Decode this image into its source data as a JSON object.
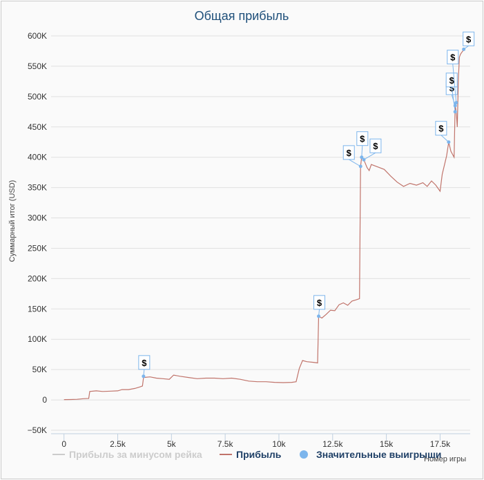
{
  "chart_data": {
    "type": "line",
    "title": "Общая прибыль",
    "xlabel": "Номер игры",
    "ylabel": "Суммарный итог (USD)",
    "xlim": [
      -600,
      18900
    ],
    "ylim": [
      -50000,
      600000
    ],
    "x_ticks": [
      0,
      2500,
      5000,
      7500,
      10000,
      12500,
      15000,
      17500
    ],
    "x_tick_labels": [
      "0",
      "2.5k",
      "5k",
      "7.5k",
      "10k",
      "12.5k",
      "15k",
      "17.5k"
    ],
    "y_ticks": [
      -50000,
      0,
      50000,
      100000,
      150000,
      200000,
      250000,
      300000,
      350000,
      400000,
      450000,
      500000,
      550000,
      600000
    ],
    "y_tick_labels": [
      "−50K",
      "0",
      "50K",
      "100K",
      "150K",
      "200K",
      "250K",
      "300K",
      "350K",
      "400K",
      "450K",
      "500K",
      "550K",
      "600K"
    ],
    "grid": true,
    "legend_position": "bottom",
    "legend": [
      {
        "label": "Прибыль за минусом рейка",
        "color": "#cccccc",
        "marker": "line",
        "active": false
      },
      {
        "label": "Прибыль",
        "color": "#c0736a",
        "marker": "line",
        "active": true
      },
      {
        "label": "Значительные выигрыши",
        "color": "#7cb5ec",
        "marker": "circle",
        "active": true
      }
    ],
    "series": [
      {
        "name": "Прибыль",
        "color": "#c0736a",
        "points": [
          [
            0,
            500
          ],
          [
            300,
            700
          ],
          [
            600,
            1000
          ],
          [
            900,
            2000
          ],
          [
            1150,
            2500
          ],
          [
            1200,
            14000
          ],
          [
            1500,
            15000
          ],
          [
            1800,
            14000
          ],
          [
            2200,
            14500
          ],
          [
            2500,
            15000
          ],
          [
            2700,
            17000
          ],
          [
            3000,
            17000
          ],
          [
            3300,
            19000
          ],
          [
            3500,
            21000
          ],
          [
            3650,
            23000
          ],
          [
            3700,
            37000
          ],
          [
            4000,
            38000
          ],
          [
            4300,
            36000
          ],
          [
            4600,
            35000
          ],
          [
            4900,
            34000
          ],
          [
            5100,
            41000
          ],
          [
            5400,
            39000
          ],
          [
            5800,
            37000
          ],
          [
            6200,
            35000
          ],
          [
            6600,
            36000
          ],
          [
            7000,
            36000
          ],
          [
            7400,
            35000
          ],
          [
            7800,
            36000
          ],
          [
            8200,
            34000
          ],
          [
            8600,
            31000
          ],
          [
            9000,
            30000
          ],
          [
            9400,
            30000
          ],
          [
            9800,
            29000
          ],
          [
            10200,
            28500
          ],
          [
            10600,
            29000
          ],
          [
            10800,
            30000
          ],
          [
            10950,
            52000
          ],
          [
            11100,
            65000
          ],
          [
            11300,
            63000
          ],
          [
            11600,
            62000
          ],
          [
            11800,
            61000
          ],
          [
            11850,
            138000
          ],
          [
            12000,
            135000
          ],
          [
            12200,
            141000
          ],
          [
            12400,
            148000
          ],
          [
            12600,
            147000
          ],
          [
            12800,
            157000
          ],
          [
            13000,
            160000
          ],
          [
            13200,
            156000
          ],
          [
            13400,
            163000
          ],
          [
            13600,
            165000
          ],
          [
            13750,
            167000
          ],
          [
            13800,
            385000
          ],
          [
            13850,
            400000
          ],
          [
            13950,
            396000
          ],
          [
            14100,
            383000
          ],
          [
            14200,
            378000
          ],
          [
            14300,
            388000
          ],
          [
            14600,
            384000
          ],
          [
            14900,
            380000
          ],
          [
            15200,
            369000
          ],
          [
            15500,
            359000
          ],
          [
            15800,
            352000
          ],
          [
            16100,
            357000
          ],
          [
            16400,
            354000
          ],
          [
            16700,
            358000
          ],
          [
            16900,
            352000
          ],
          [
            17100,
            361000
          ],
          [
            17300,
            354000
          ],
          [
            17500,
            344000
          ],
          [
            17600,
            372000
          ],
          [
            17800,
            402000
          ],
          [
            17900,
            425000
          ],
          [
            18000,
            410000
          ],
          [
            18150,
            400000
          ],
          [
            18200,
            485000
          ],
          [
            18250,
            475000
          ],
          [
            18300,
            450000
          ],
          [
            18350,
            530000
          ],
          [
            18400,
            565000
          ],
          [
            18450,
            570000
          ],
          [
            18550,
            575000
          ],
          [
            18650,
            578000
          ]
        ]
      }
    ],
    "big_wins": [
      [
        3700,
        39000
      ],
      [
        11850,
        138000
      ],
      [
        13800,
        385000
      ],
      [
        13850,
        400000
      ],
      [
        13950,
        396000
      ],
      [
        17900,
        425000
      ],
      [
        18200,
        485000
      ],
      [
        18200,
        475000
      ],
      [
        18250,
        490000
      ],
      [
        18600,
        578000
      ]
    ]
  }
}
